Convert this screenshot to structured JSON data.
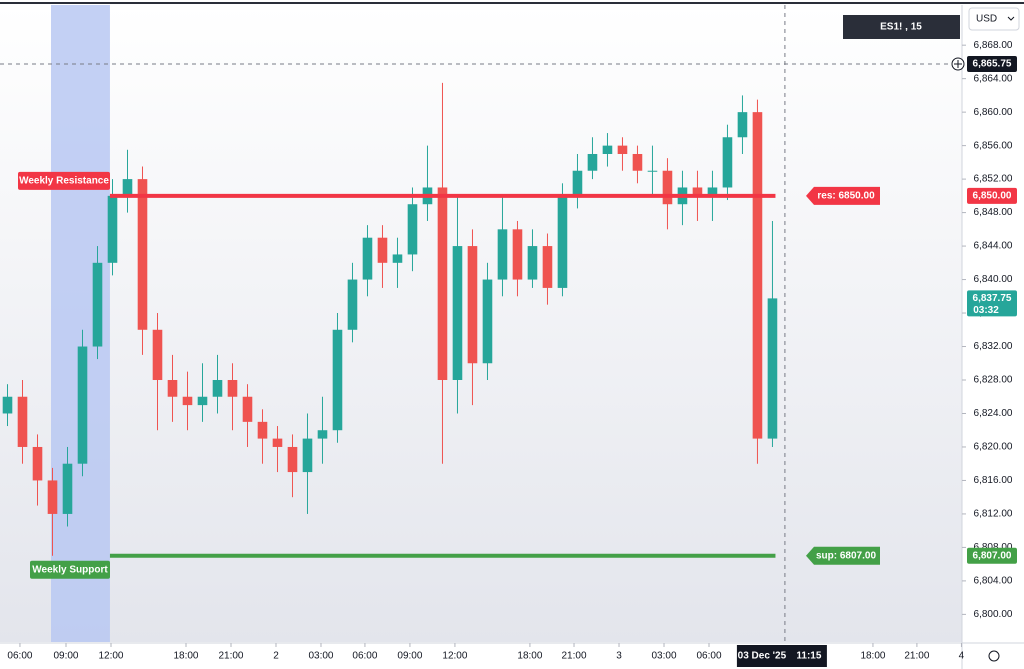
{
  "chart_data": {
    "type": "candlestick",
    "symbol": "ES1! , 15",
    "currency": "USD",
    "up_color": "#26a69a",
    "down_color": "#ef5350",
    "open": [
      6824,
      6826,
      6820,
      6816,
      6812,
      6818,
      6832,
      6842,
      6850,
      6852,
      6834,
      6828,
      6826,
      6825,
      6826,
      6828,
      6826,
      6823,
      6821,
      6820,
      6817,
      6821,
      6822,
      6834,
      6840,
      6845,
      6842,
      6843,
      6849,
      6851,
      6828,
      6844,
      6830,
      6840,
      6846,
      6840,
      6844,
      6839,
      6850,
      6853,
      6855,
      6856,
      6855,
      6853,
      6853,
      6849,
      6851,
      6850,
      6851,
      6857,
      6860,
      6821
    ],
    "high": [
      6827.5,
      6828,
      6821.5,
      6817.5,
      6820,
      6834,
      6844,
      6852,
      6855.5,
      6853.5,
      6836,
      6831,
      6829,
      6830,
      6831,
      6830,
      6827.5,
      6824.5,
      6822.5,
      6821.5,
      6824,
      6826,
      6836,
      6842,
      6846.5,
      6846.5,
      6845,
      6851,
      6856,
      6863.5,
      6850,
      6846,
      6842,
      6850,
      6847,
      6846,
      6845.5,
      6851.5,
      6855,
      6857,
      6857.5,
      6857,
      6856,
      6856,
      6854.5,
      6853,
      6853,
      6853,
      6858.5,
      6862,
      6861.5,
      6847
    ],
    "low": [
      6822.5,
      6818,
      6813,
      6807,
      6810.5,
      6816.5,
      6830.5,
      6840.5,
      6848,
      6831,
      6822,
      6823,
      6822,
      6823,
      6824,
      6822,
      6820,
      6818,
      6817,
      6814,
      6812,
      6818,
      6820.5,
      6832.5,
      6838,
      6839,
      6839,
      6841,
      6847,
      6818,
      6824,
      6825,
      6828,
      6838,
      6838,
      6839,
      6837,
      6838,
      6848.5,
      6852,
      6853.5,
      6853,
      6851.5,
      6850,
      6846,
      6846.5,
      6847,
      6847,
      6849.5,
      6855,
      6818,
      6820
    ],
    "close": [
      6826,
      6820,
      6816,
      6812,
      6818,
      6832,
      6842,
      6850,
      6852,
      6834,
      6828,
      6826,
      6825,
      6826,
      6828,
      6826,
      6823,
      6821,
      6820,
      6817,
      6821,
      6822,
      6834,
      6840,
      6845,
      6842,
      6843,
      6849,
      6851,
      6828,
      6844,
      6830,
      6840,
      6846,
      6840,
      6844,
      6839,
      6850,
      6853,
      6855,
      6856,
      6855,
      6853,
      6853,
      6849,
      6851,
      6850,
      6851,
      6857,
      6860,
      6821,
      6837.75
    ],
    "xlim": [
      -0.5,
      62.17
    ],
    "xticks": [
      {
        "value": 0.83,
        "label": "06:00"
      },
      {
        "value": 3.9,
        "label": "09:00"
      },
      {
        "value": 6.9,
        "label": "12:00"
      },
      {
        "value": 11.9,
        "label": "18:00"
      },
      {
        "value": 14.9,
        "label": "21:00"
      },
      {
        "value": 17.9,
        "label": "2"
      },
      {
        "value": 20.9,
        "label": "03:00"
      },
      {
        "value": 23.83,
        "label": "06:00"
      },
      {
        "value": 26.83,
        "label": "09:00"
      },
      {
        "value": 29.83,
        "label": "12:00"
      },
      {
        "value": 34.83,
        "label": "18:00"
      },
      {
        "value": 37.77,
        "label": "21:00"
      },
      {
        "value": 40.77,
        "label": "3"
      },
      {
        "value": 43.77,
        "label": "03:00"
      },
      {
        "value": 46.77,
        "label": "06:00"
      },
      {
        "value": 57.7,
        "label": "18:00"
      },
      {
        "value": 60.63,
        "label": "21:00"
      },
      {
        "value": 63.6,
        "label": "4"
      }
    ],
    "ylim": [
      6796.7,
      6872.8
    ],
    "yticks": [
      {
        "value": 6868,
        "label": "6,868.00"
      },
      {
        "value": 6864,
        "label": "6,864.00"
      },
      {
        "value": 6860,
        "label": "6,860.00"
      },
      {
        "value": 6856,
        "label": "6,856.00"
      },
      {
        "value": 6852,
        "label": "6,852.00"
      },
      {
        "value": 6848,
        "label": "6,848.00"
      },
      {
        "value": 6844,
        "label": "6,844.00"
      },
      {
        "value": 6840,
        "label": "6,840.00"
      },
      {
        "value": 6836,
        "label": "6,836.00"
      },
      {
        "value": 6832,
        "label": "6,832.00"
      },
      {
        "value": 6828,
        "label": "6,828.00"
      },
      {
        "value": 6824,
        "label": "6,824.00"
      },
      {
        "value": 6820,
        "label": "6,820.00"
      },
      {
        "value": 6816,
        "label": "6,816.00"
      },
      {
        "value": 6812,
        "label": "6,812.00"
      },
      {
        "value": 6808,
        "label": "6,808.00"
      },
      {
        "value": 6804,
        "label": "6,804.00"
      },
      {
        "value": 6800,
        "label": "6,800.00"
      }
    ],
    "highlight": [
      2.9,
      6.83
    ],
    "levels": [
      {
        "name": "Weekly Resistance",
        "value": 6850,
        "label": "res: 6850.00",
        "price_label": "6,850.00",
        "color": "#f23645"
      },
      {
        "name": "Weekly Support",
        "value": 6807,
        "label": "sup: 6807.00",
        "price_label": "6,807.00",
        "color": "#43a047"
      }
    ],
    "last_price": {
      "value": 6837.75,
      "label": "6,837.75",
      "countdown": "03:32"
    },
    "crosshair": {
      "x": 51.83,
      "price": 6865.75,
      "price_label": "6,865.75",
      "date_label": "03 Dec '25",
      "time_label": "11:15"
    }
  }
}
